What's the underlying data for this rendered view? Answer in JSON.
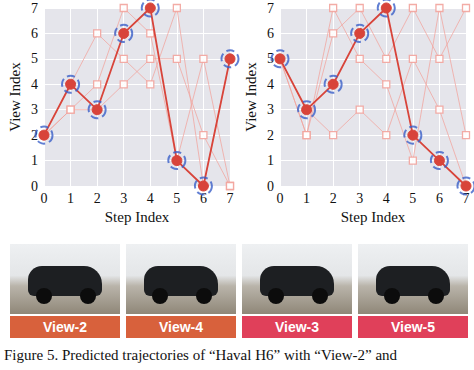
{
  "chart_data": [
    {
      "type": "line",
      "xlabel": "Step Index",
      "ylabel": "View Index",
      "x": [
        0,
        1,
        2,
        3,
        4,
        5,
        6,
        7
      ],
      "xlim": [
        0,
        7
      ],
      "xticks": [
        0,
        1,
        2,
        3,
        4,
        5,
        6,
        7
      ],
      "ylim": [
        0,
        7
      ],
      "yticks": [
        0,
        1,
        2,
        3,
        4,
        5,
        6,
        7
      ],
      "grid": true,
      "series": [
        {
          "color": "#f2a39c",
          "marker": "square",
          "line_style": "solid",
          "values": [
            2,
            3,
            4,
            7,
            6,
            1,
            5,
            0
          ]
        },
        {
          "color": "#f2a39c",
          "marker": "square",
          "line_style": "solid",
          "values": [
            2,
            4,
            6,
            5,
            4,
            7,
            0,
            5
          ]
        },
        {
          "color": "#f2a39c",
          "marker": "square",
          "line_style": "solid",
          "values": [
            2,
            3,
            3,
            4,
            5,
            5,
            2,
            0
          ]
        },
        {
          "color": "#d8443a",
          "marker": "circle",
          "line_style": "solid",
          "values": [
            2,
            4,
            3,
            6,
            7,
            1,
            0,
            5
          ]
        },
        {
          "type": "scatter",
          "color": "#3a5fc8",
          "marker": "ring",
          "line_style": "dashed",
          "values": [
            2,
            4,
            3,
            6,
            7,
            1,
            0,
            5
          ]
        }
      ]
    },
    {
      "type": "line",
      "xlabel": "Step Index",
      "ylabel": "View Index",
      "x": [
        0,
        1,
        2,
        3,
        4,
        5,
        6,
        7
      ],
      "xlim": [
        0,
        7
      ],
      "xticks": [
        0,
        1,
        2,
        3,
        4,
        5,
        6,
        7
      ],
      "ylim": [
        0,
        7
      ],
      "yticks": [
        0,
        1,
        2,
        3,
        4,
        5,
        6,
        7
      ],
      "grid": true,
      "series": [
        {
          "color": "#f2a39c",
          "marker": "square",
          "line_style": "solid",
          "values": [
            5,
            2,
            6,
            7,
            5,
            7,
            5,
            7
          ]
        },
        {
          "color": "#f2a39c",
          "marker": "square",
          "line_style": "solid",
          "values": [
            5,
            3,
            2,
            3,
            2,
            5,
            3,
            0
          ]
        },
        {
          "color": "#f2a39c",
          "marker": "square",
          "line_style": "solid",
          "values": [
            5,
            2,
            7,
            5,
            4,
            1,
            7,
            2
          ]
        },
        {
          "color": "#d8443a",
          "marker": "circle",
          "line_style": "solid",
          "values": [
            5,
            3,
            4,
            6,
            7,
            2,
            1,
            0
          ]
        },
        {
          "type": "scatter",
          "color": "#3a5fc8",
          "marker": "ring",
          "line_style": "dashed",
          "values": [
            5,
            3,
            4,
            6,
            7,
            2,
            1,
            0
          ]
        }
      ]
    }
  ],
  "images": [
    {
      "label": "View-2",
      "color": "#d8613c"
    },
    {
      "label": "View-4",
      "color": "#d8613c"
    },
    {
      "label": "View-3",
      "color": "#e0405a"
    },
    {
      "label": "View-5",
      "color": "#e0405a"
    }
  ],
  "caption": "Figure 5. Predicted trajectories of “Haval H6” with “View-2” and"
}
